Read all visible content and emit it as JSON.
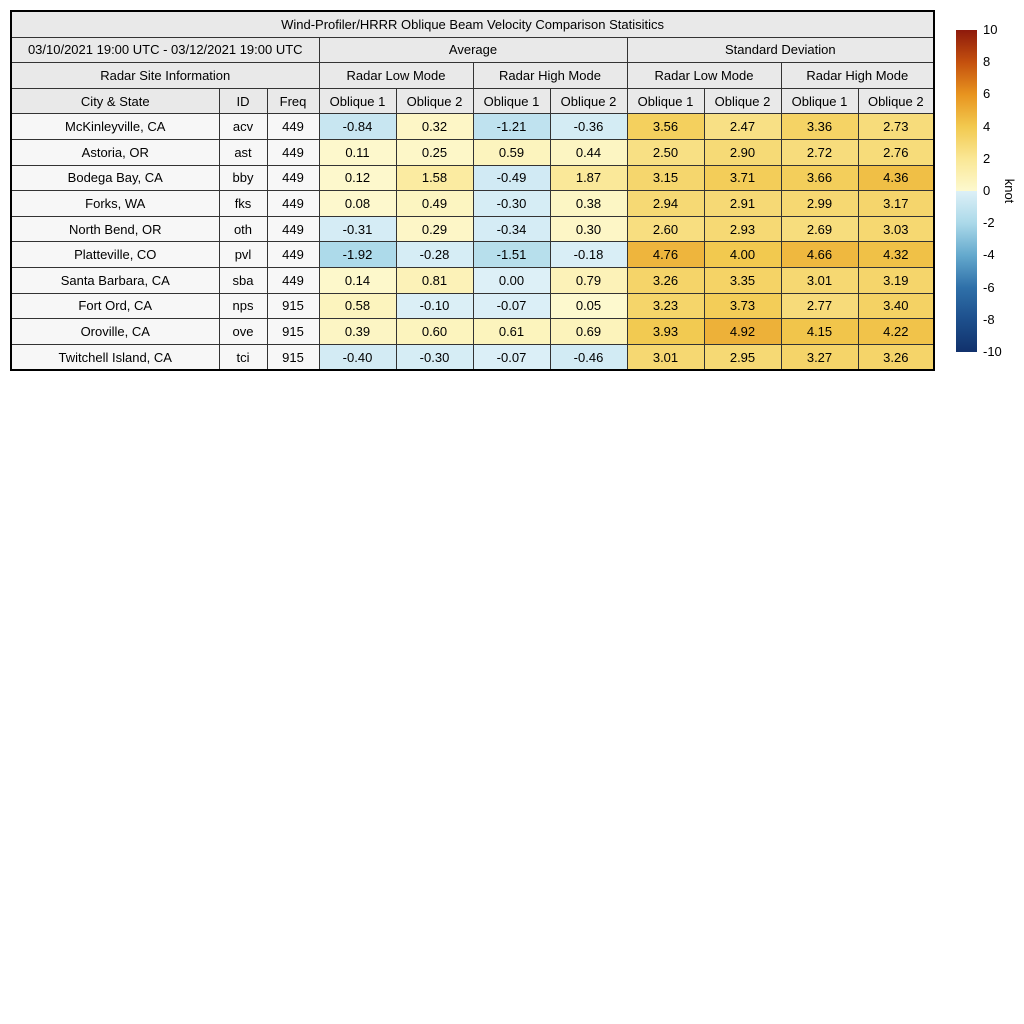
{
  "chart_data": {
    "type": "table-heatmap",
    "title": "Wind-Profiler/HRRR Oblique Beam Velocity Comparison Statisitics",
    "header": {
      "date_range": "03/10/2021 19:00 UTC - 03/12/2021 19:00 UTC",
      "group_average": "Average",
      "group_std": "Standard Deviation",
      "site_info": "Radar Site Information",
      "mode_headers": [
        "Radar Low Mode",
        "Radar High Mode",
        "Radar Low Mode",
        "Radar High Mode"
      ],
      "col_headers": [
        "City & State",
        "ID",
        "Freq",
        "Oblique 1",
        "Oblique 2",
        "Oblique 1",
        "Oblique 2",
        "Oblique 1",
        "Oblique 2",
        "Oblique 1",
        "Oblique 2"
      ]
    },
    "rows": [
      {
        "city": "McKinleyville, CA",
        "id": "acv",
        "freq": "449",
        "values": [
          "-0.84",
          "0.32",
          "-1.21",
          "-0.36",
          "3.56",
          "2.47",
          "3.36",
          "2.73"
        ]
      },
      {
        "city": "Astoria, OR",
        "id": "ast",
        "freq": "449",
        "values": [
          "0.11",
          "0.25",
          "0.59",
          "0.44",
          "2.50",
          "2.90",
          "2.72",
          "2.76"
        ]
      },
      {
        "city": "Bodega Bay, CA",
        "id": "bby",
        "freq": "449",
        "values": [
          "0.12",
          "1.58",
          "-0.49",
          "1.87",
          "3.15",
          "3.71",
          "3.66",
          "4.36"
        ]
      },
      {
        "city": "Forks, WA",
        "id": "fks",
        "freq": "449",
        "values": [
          "0.08",
          "0.49",
          "-0.30",
          "0.38",
          "2.94",
          "2.91",
          "2.99",
          "3.17"
        ]
      },
      {
        "city": "North Bend, OR",
        "id": "oth",
        "freq": "449",
        "values": [
          "-0.31",
          "0.29",
          "-0.34",
          "0.30",
          "2.60",
          "2.93",
          "2.69",
          "3.03"
        ]
      },
      {
        "city": "Platteville, CO",
        "id": "pvl",
        "freq": "449",
        "values": [
          "-1.92",
          "-0.28",
          "-1.51",
          "-0.18",
          "4.76",
          "4.00",
          "4.66",
          "4.32"
        ]
      },
      {
        "city": "Santa Barbara, CA",
        "id": "sba",
        "freq": "449",
        "values": [
          "0.14",
          "0.81",
          "0.00",
          "0.79",
          "3.26",
          "3.35",
          "3.01",
          "3.19"
        ]
      },
      {
        "city": "Fort Ord, CA",
        "id": "nps",
        "freq": "915",
        "values": [
          "0.58",
          "-0.10",
          "-0.07",
          "0.05",
          "3.23",
          "3.73",
          "2.77",
          "3.40"
        ]
      },
      {
        "city": "Oroville, CA",
        "id": "ove",
        "freq": "915",
        "values": [
          "0.39",
          "0.60",
          "0.61",
          "0.69",
          "3.93",
          "4.92",
          "4.15",
          "4.22"
        ]
      },
      {
        "city": "Twitchell Island, CA",
        "id": "tci",
        "freq": "915",
        "values": [
          "-0.40",
          "-0.30",
          "-0.07",
          "-0.46",
          "3.01",
          "2.95",
          "3.27",
          "3.26"
        ]
      }
    ],
    "colorbar": {
      "label": "knot",
      "min": -10,
      "max": 10,
      "ticks": [
        "10",
        "8",
        "6",
        "4",
        "2",
        "0",
        "-2",
        "-4",
        "-6",
        "-8",
        "-10"
      ],
      "stops": [
        [
          -10,
          "#11316c"
        ],
        [
          -8,
          "#1d4f8c"
        ],
        [
          -6,
          "#2f70a9"
        ],
        [
          -4,
          "#64a9cd"
        ],
        [
          -2,
          "#abd9e9"
        ],
        [
          0,
          "#ddf0f7"
        ],
        [
          0.0001,
          "#fdf9cf"
        ],
        [
          2,
          "#fae795"
        ],
        [
          4,
          "#f2c94f"
        ],
        [
          6,
          "#e8941f"
        ],
        [
          8,
          "#c4500e"
        ],
        [
          10,
          "#8e1a0c"
        ]
      ]
    },
    "colors": {
      "header_bg": "#e9e9e9",
      "site_cell_bg": "#f7f7f7",
      "border": "#333333"
    }
  }
}
